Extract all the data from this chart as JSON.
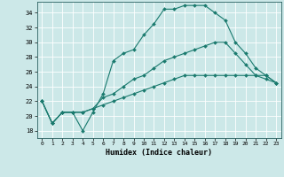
{
  "xlabel": "Humidex (Indice chaleur)",
  "bg_color": "#cce8e8",
  "grid_color": "#ffffff",
  "line_color": "#1a7a6e",
  "ylim": [
    17,
    35.5
  ],
  "xlim": [
    -0.5,
    23.5
  ],
  "yticks": [
    18,
    20,
    22,
    24,
    26,
    28,
    30,
    32,
    34
  ],
  "xticks": [
    0,
    1,
    2,
    3,
    4,
    5,
    6,
    7,
    8,
    9,
    10,
    11,
    12,
    13,
    14,
    15,
    16,
    17,
    18,
    19,
    20,
    21,
    22,
    23
  ],
  "series": [
    [
      22,
      19,
      20.5,
      20.5,
      18,
      20.5,
      23,
      27.5,
      28.5,
      29,
      31,
      32.5,
      34.5,
      34.5,
      35,
      35,
      35,
      34,
      33,
      30,
      28.5,
      26.5,
      25.5,
      24.5
    ],
    [
      22,
      19,
      20.5,
      20.5,
      20.5,
      21,
      22.5,
      23,
      24,
      25,
      25.5,
      26.5,
      27.5,
      28,
      28.5,
      29,
      29.5,
      30,
      30,
      28.5,
      27,
      25.5,
      25,
      24.5
    ],
    [
      22,
      19,
      20.5,
      20.5,
      20.5,
      21,
      21.5,
      22,
      22.5,
      23,
      23.5,
      24,
      24.5,
      25,
      25.5,
      25.5,
      25.5,
      25.5,
      25.5,
      25.5,
      25.5,
      25.5,
      25.5,
      24.5
    ]
  ]
}
